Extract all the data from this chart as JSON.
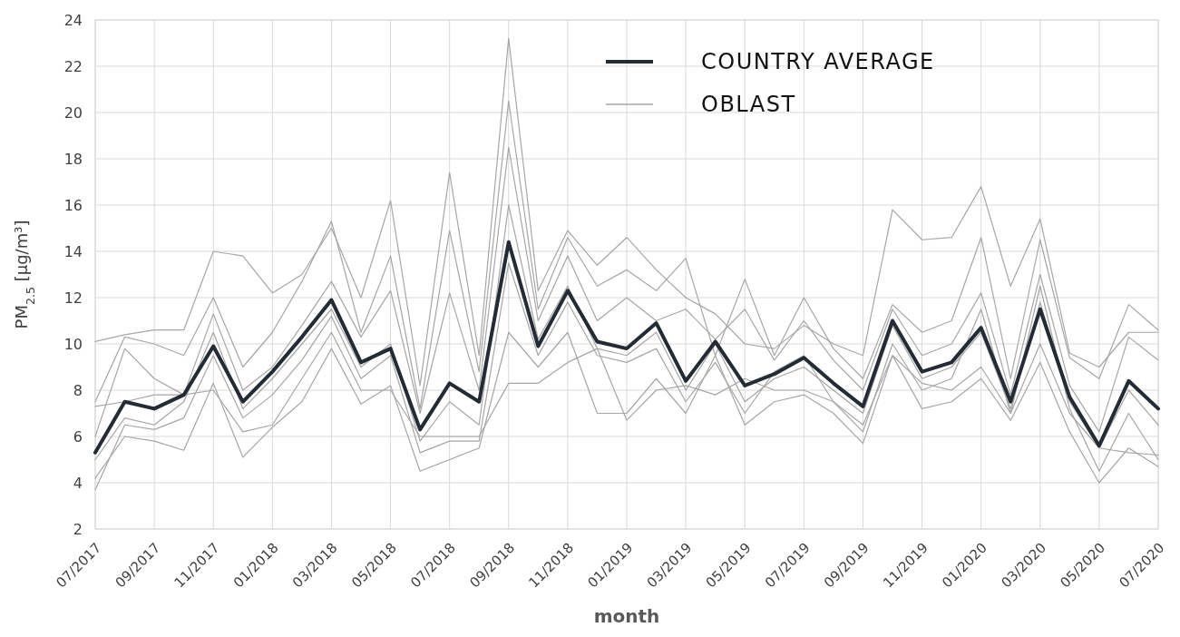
{
  "chart_data": {
    "type": "line",
    "xlabel": "month",
    "ylabel": "PM$_{2.5}$ [µg/m³]",
    "categories": [
      "07/2017",
      null,
      "09/2017",
      null,
      "11/2017",
      null,
      "01/2018",
      null,
      "03/2018",
      null,
      "05/2018",
      null,
      "07/2018",
      null,
      "09/2018",
      null,
      "11/2018",
      null,
      "01/2019",
      null,
      "03/2019",
      null,
      "05/2019",
      null,
      "07/2019",
      null,
      "09/2019",
      null,
      "11/2019",
      null,
      "01/2020",
      null,
      "03/2020",
      null,
      "05/2020",
      null,
      "07/2020"
    ],
    "ylim": [
      2,
      24
    ],
    "yticks": [
      2,
      4,
      6,
      8,
      10,
      12,
      14,
      16,
      18,
      20,
      22,
      24
    ],
    "grid": true,
    "legend": "top right",
    "series": [
      {
        "name": "OBLAST",
        "color": "#a6a6a6",
        "values": [
          10.1,
          10.4,
          10.6,
          10.6,
          14.0,
          13.8,
          12.2,
          13.0,
          15.0,
          12.0,
          16.2,
          8.2,
          17.4,
          9.5,
          23.2,
          12.3,
          14.9,
          13.4,
          14.6,
          13.2,
          12.0,
          11.3,
          10.0,
          9.8,
          10.8,
          10.0,
          9.5,
          15.8,
          14.5,
          14.6,
          16.8,
          12.5,
          15.4,
          9.6,
          9.0,
          10.5,
          10.5
        ]
      },
      {
        "color": "#a6a6a6",
        "values": [
          7.5,
          10.3,
          10.0,
          9.5,
          12.0,
          9.0,
          10.5,
          12.7,
          15.3,
          10.5,
          13.8,
          7.2,
          14.9,
          8.8,
          20.5,
          11.5,
          14.6,
          12.5,
          13.2,
          12.3,
          13.7,
          9.5,
          12.8,
          9.5,
          12.0,
          9.8,
          8.5,
          11.7,
          10.5,
          11.0,
          14.6,
          8.5,
          14.5,
          9.4,
          8.5,
          11.7,
          10.6
        ]
      },
      {
        "color": "#a6a6a6",
        "values": [
          6.0,
          9.8,
          8.5,
          7.8,
          11.3,
          8.0,
          9.0,
          10.8,
          12.7,
          10.3,
          12.3,
          7.0,
          12.2,
          8.0,
          18.5,
          11.0,
          13.8,
          11.0,
          12.0,
          11.0,
          11.5,
          10.2,
          11.5,
          9.3,
          11.0,
          9.3,
          8.0,
          11.5,
          9.5,
          10.0,
          12.2,
          7.8,
          13.0,
          8.2,
          6.2,
          10.3,
          9.3
        ]
      },
      {
        "color": "#a6a6a6",
        "values": [
          5.0,
          6.8,
          6.5,
          7.5,
          10.5,
          7.2,
          8.5,
          10.0,
          11.5,
          9.0,
          10.0,
          5.8,
          7.5,
          6.5,
          16.0,
          10.2,
          12.5,
          9.8,
          9.5,
          10.5,
          8.0,
          10.0,
          7.5,
          8.5,
          9.0,
          8.0,
          7.0,
          10.8,
          8.5,
          9.0,
          10.5,
          7.2,
          11.8,
          7.5,
          5.5,
          8.0,
          6.5
        ]
      },
      {
        "color": "#a6a6a6",
        "values": [
          4.2,
          6.0,
          5.8,
          5.4,
          8.3,
          5.1,
          6.4,
          7.5,
          9.8,
          7.4,
          8.2,
          4.5,
          5.0,
          5.5,
          10.5,
          9.0,
          10.5,
          7.0,
          7.0,
          8.5,
          7.0,
          9.5,
          6.5,
          7.5,
          7.8,
          7.0,
          5.7,
          9.5,
          7.2,
          7.5,
          8.5,
          6.7,
          9.2,
          6.2,
          4.0,
          5.5,
          4.7
        ]
      },
      {
        "color": "#a6a6a6",
        "values": [
          7.3,
          7.5,
          7.8,
          7.8,
          8.0,
          6.2,
          6.5,
          8.5,
          10.5,
          8.0,
          8.0,
          6.0,
          6.0,
          6.0,
          8.3,
          8.3,
          9.2,
          9.8,
          6.7,
          8.0,
          8.2,
          7.8,
          8.5,
          8.0,
          8.0,
          7.5,
          6.5,
          9.5,
          8.3,
          8.0,
          9.0,
          7.0,
          10.0,
          7.0,
          5.5,
          5.3,
          5.2
        ]
      },
      {
        "color": "#a6a6a6",
        "values": [
          3.7,
          6.5,
          6.3,
          6.8,
          9.5,
          6.8,
          7.8,
          9.3,
          11.2,
          8.5,
          9.5,
          5.3,
          5.8,
          5.8,
          13.5,
          9.5,
          11.8,
          9.5,
          9.2,
          9.8,
          7.5,
          9.2,
          7.0,
          8.8,
          9.5,
          7.5,
          6.2,
          10.0,
          8.0,
          8.5,
          11.5,
          7.0,
          12.5,
          7.2,
          4.5,
          7.0,
          5.0
        ]
      },
      {
        "name": "COUNTRY AVERAGE",
        "color": "#232b36",
        "values": [
          5.3,
          7.5,
          7.2,
          7.8,
          9.9,
          7.5,
          8.8,
          10.3,
          11.9,
          9.2,
          9.8,
          6.3,
          8.3,
          7.5,
          14.4,
          9.9,
          12.3,
          10.1,
          9.8,
          10.9,
          8.4,
          10.1,
          8.2,
          8.7,
          9.4,
          8.3,
          7.3,
          11.0,
          8.8,
          9.2,
          10.7,
          7.5,
          11.5,
          7.7,
          5.6,
          8.4,
          7.2
        ]
      }
    ]
  }
}
